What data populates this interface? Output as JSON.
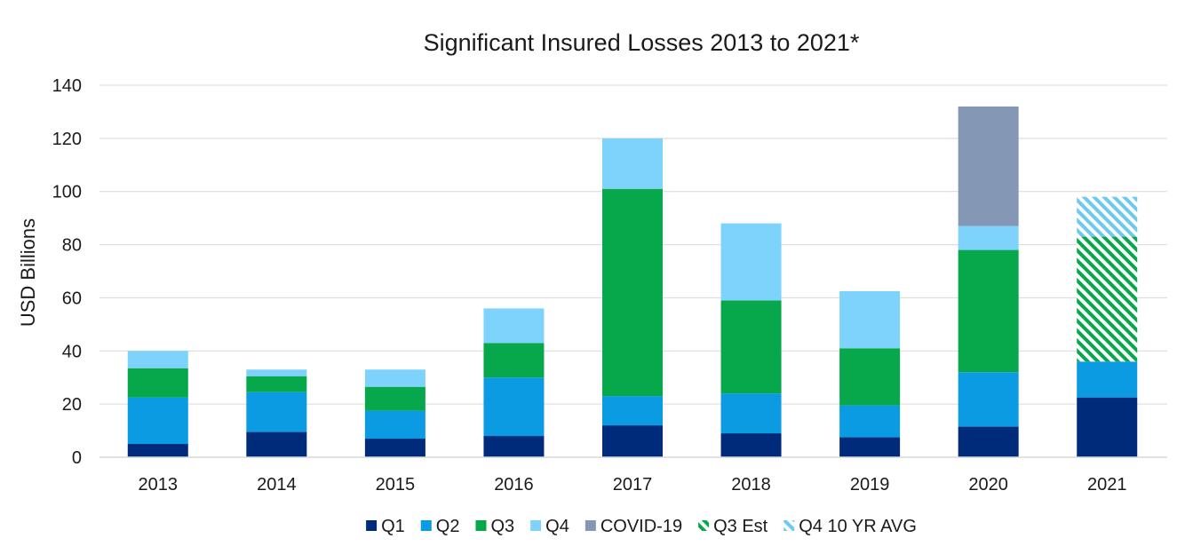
{
  "chart_data": {
    "type": "bar",
    "stacked": true,
    "title": "Significant Insured  Losses 2013 to 2021*",
    "ylabel": "USD Billions",
    "xlabel": "",
    "ylim": [
      0,
      140
    ],
    "yticks": [
      0,
      20,
      40,
      60,
      80,
      100,
      120,
      140
    ],
    "grid": true,
    "legend_position": "bottom",
    "categories": [
      "2013",
      "2014",
      "2015",
      "2016",
      "2017",
      "2018",
      "2019",
      "2020",
      "2021"
    ],
    "series": [
      {
        "name": "Q1",
        "color": "#002b7a",
        "pattern": "solid",
        "values": [
          5,
          9.5,
          7,
          8,
          12,
          9,
          7.5,
          11.5,
          22.5
        ]
      },
      {
        "name": "Q2",
        "color": "#0b9be3",
        "pattern": "solid",
        "values": [
          17.5,
          15,
          10.5,
          22,
          11,
          15,
          12,
          20.5,
          13.5
        ]
      },
      {
        "name": "Q3",
        "color": "#06a84b",
        "pattern": "solid",
        "values": [
          11,
          6,
          9,
          13,
          78,
          35,
          21.5,
          46,
          0
        ]
      },
      {
        "name": "Q4",
        "color": "#7dd3fc",
        "pattern": "solid",
        "values": [
          6.5,
          2.5,
          6.5,
          13,
          19,
          29,
          21.5,
          9,
          0
        ]
      },
      {
        "name": "COVID-19",
        "color": "#8497b5",
        "pattern": "solid",
        "values": [
          0,
          0,
          0,
          0,
          0,
          0,
          0,
          45,
          0
        ]
      },
      {
        "name": "Q3 Est",
        "color": "#06a84b",
        "pattern": "hatch",
        "values": [
          0,
          0,
          0,
          0,
          0,
          0,
          0,
          0,
          47
        ]
      },
      {
        "name": "Q4 10 YR AVG",
        "color": "#6cc9ef",
        "pattern": "hatch",
        "values": [
          0,
          0,
          0,
          0,
          0,
          0,
          0,
          0,
          15
        ]
      }
    ]
  }
}
